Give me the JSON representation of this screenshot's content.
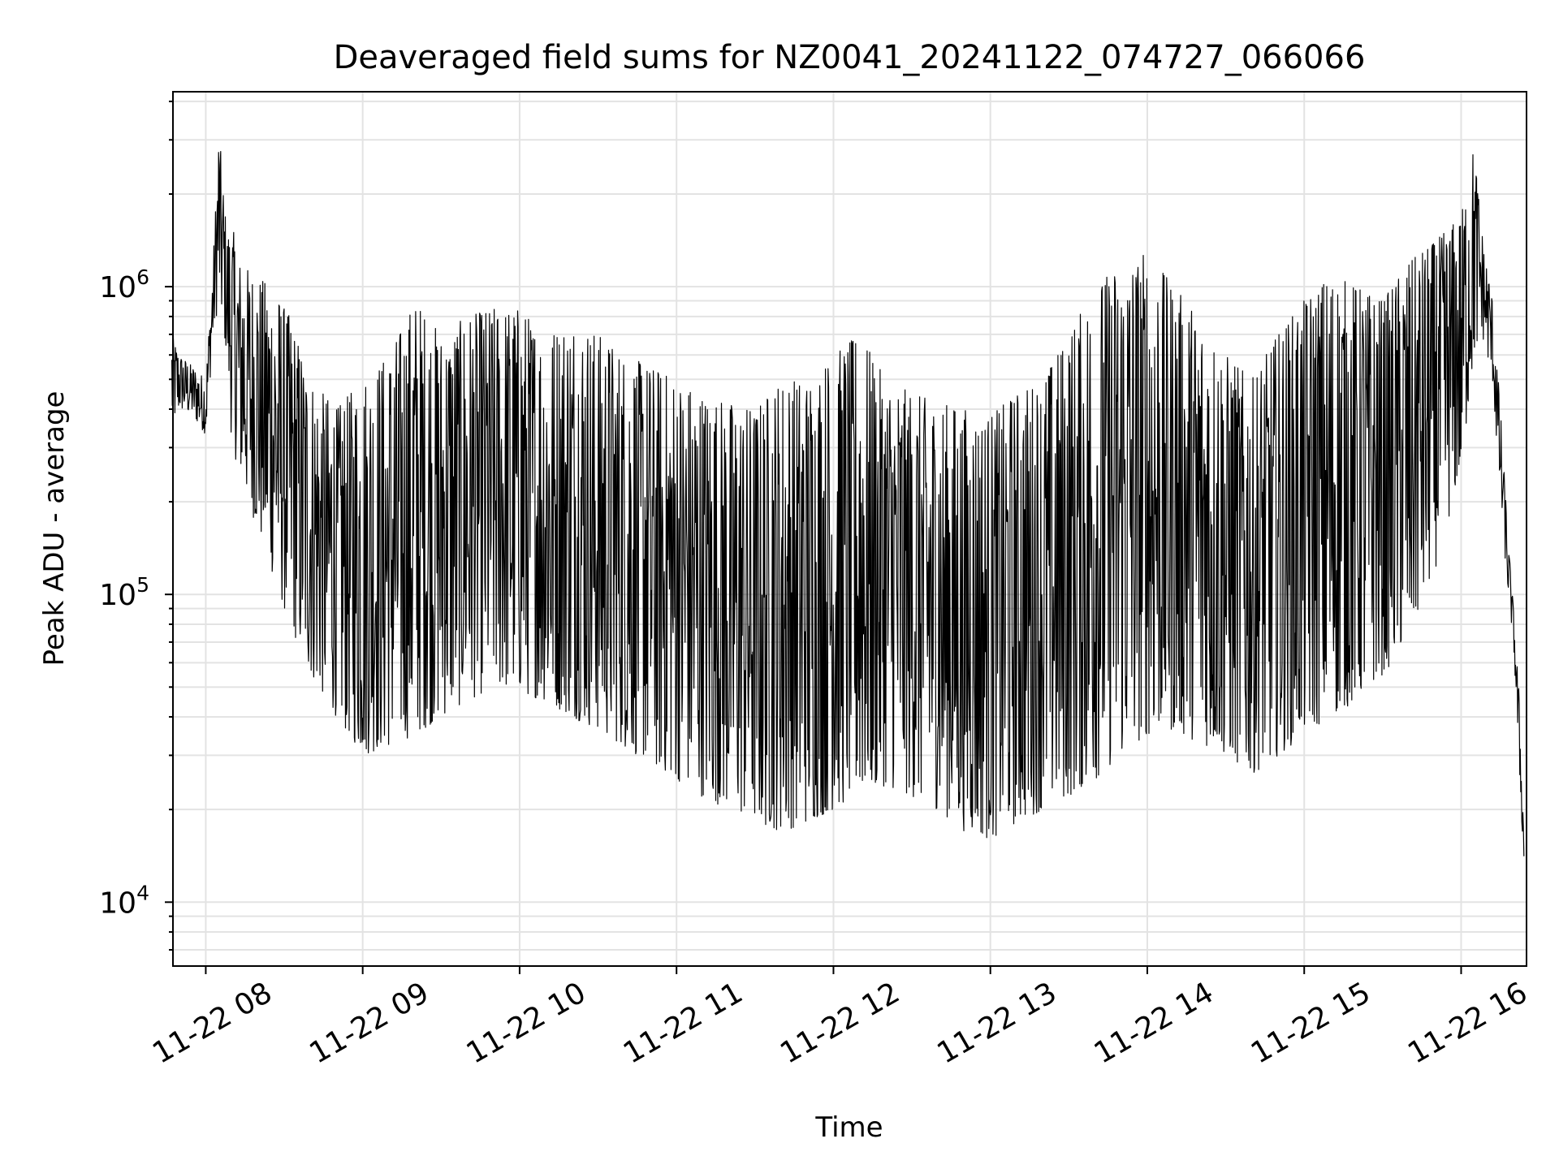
{
  "chart_data": {
    "type": "line",
    "title": "Deaveraged field sums for NZ0041_20241122_074727_066066",
    "xlabel": "Time",
    "ylabel": "Peak ADU - average",
    "x_axis": {
      "kind": "time",
      "start": "2024-11-22T07:47:27",
      "end": "2024-11-22T16:25:00",
      "ticks": [
        {
          "value": "2024-11-22T08:00",
          "label": "11-22 08"
        },
        {
          "value": "2024-11-22T09:00",
          "label": "11-22 09"
        },
        {
          "value": "2024-11-22T10:00",
          "label": "11-22 10"
        },
        {
          "value": "2024-11-22T11:00",
          "label": "11-22 11"
        },
        {
          "value": "2024-11-22T12:00",
          "label": "11-22 12"
        },
        {
          "value": "2024-11-22T13:00",
          "label": "11-22 13"
        },
        {
          "value": "2024-11-22T14:00",
          "label": "11-22 14"
        },
        {
          "value": "2024-11-22T15:00",
          "label": "11-22 15"
        },
        {
          "value": "2024-11-22T16:00",
          "label": "11-22 16"
        }
      ]
    },
    "y_axis": {
      "scale": "log",
      "ylim": [
        6200,
        4300000
      ],
      "ticks": [
        {
          "value": 10000,
          "base": "10",
          "exp": "4"
        },
        {
          "value": 100000,
          "base": "10",
          "exp": "5"
        },
        {
          "value": 1000000,
          "base": "10",
          "exp": "6"
        }
      ]
    },
    "grid": true,
    "line_color": "#000000",
    "grid_color": "#e3e3e3",
    "series": [
      {
        "description": "noisy trace; values sampled from the envelope of the plot",
        "x": [
          "07:47",
          "07:50",
          "07:55",
          "08:00",
          "08:03",
          "08:05",
          "08:08",
          "08:10",
          "08:13",
          "08:18",
          "08:25",
          "08:32",
          "08:40",
          "08:50",
          "09:00",
          "09:10",
          "09:20",
          "09:30",
          "09:40",
          "09:50",
          "10:00",
          "10:10",
          "10:20",
          "10:30",
          "10:40",
          "10:50",
          "11:00",
          "11:10",
          "11:20",
          "11:30",
          "11:40",
          "11:50",
          "12:00",
          "12:10",
          "12:20",
          "12:30",
          "12:40",
          "12:50",
          "13:00",
          "13:10",
          "13:20",
          "13:30",
          "13:40",
          "13:50",
          "14:00",
          "14:10",
          "14:20",
          "14:30",
          "14:40",
          "14:50",
          "15:00",
          "15:10",
          "15:20",
          "15:30",
          "15:40",
          "15:50",
          "16:00",
          "16:05",
          "16:08",
          "16:12",
          "16:15",
          "16:18",
          "16:20",
          "16:22",
          "16:24"
        ],
        "low": [
          350000,
          400000,
          380000,
          330000,
          700000,
          900000,
          600000,
          300000,
          250000,
          180000,
          120000,
          80000,
          55000,
          40000,
          30000,
          32000,
          35000,
          40000,
          45000,
          50000,
          48000,
          45000,
          40000,
          36000,
          32000,
          28000,
          25000,
          22000,
          20000,
          18000,
          17000,
          18000,
          20000,
          22000,
          24000,
          22000,
          20000,
          17000,
          16000,
          18000,
          20000,
          22000,
          25000,
          30000,
          35000,
          36000,
          33000,
          30000,
          26000,
          30000,
          35000,
          40000,
          45000,
          55000,
          70000,
          120000,
          250000,
          600000,
          700000,
          500000,
          200000,
          100000,
          70000,
          30000,
          13000
        ],
        "high": [
          700000,
          600000,
          550000,
          500000,
          1300000,
          3300000,
          1500000,
          1600000,
          1200000,
          1100000,
          1000000,
          800000,
          500000,
          400000,
          500000,
          600000,
          900000,
          700000,
          800000,
          850000,
          850000,
          700000,
          800000,
          700000,
          600000,
          550000,
          500000,
          450000,
          420000,
          400000,
          500000,
          500000,
          600000,
          700000,
          500000,
          450000,
          420000,
          400000,
          380000,
          450000,
          500000,
          700000,
          1000000,
          1200000,
          1300000,
          1000000,
          800000,
          600000,
          500000,
          700000,
          900000,
          1100000,
          1000000,
          900000,
          1200000,
          1400000,
          1700000,
          2900000,
          1500000,
          900000,
          400000,
          150000,
          90000,
          50000,
          17000
        ]
      }
    ]
  }
}
